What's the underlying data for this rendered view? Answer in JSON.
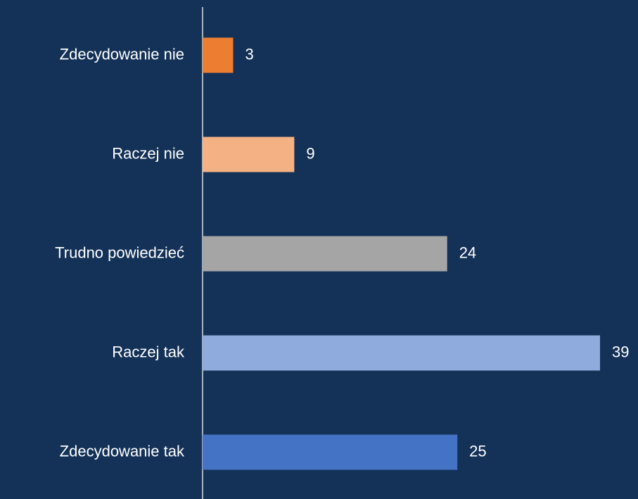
{
  "chart_data": {
    "type": "barh",
    "categories": [
      "Zdecydowanie nie",
      "Raczej nie",
      "Trudno powiedzieć",
      "Raczej tak",
      "Zdecydowanie tak"
    ],
    "values": [
      3,
      9,
      24,
      39,
      25
    ],
    "colors": [
      "#ed7d31",
      "#f4b183",
      "#a5a5a5",
      "#8faadc",
      "#4472c4"
    ]
  }
}
